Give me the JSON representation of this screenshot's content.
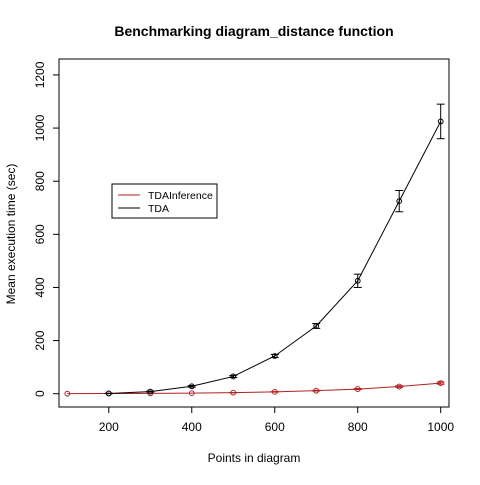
{
  "chart_data": {
    "type": "line",
    "title": "Benchmarking diagram_distance function",
    "xlabel": "Points in diagram",
    "ylabel": "Mean execution time (sec)",
    "xlim": [
      80,
      1020
    ],
    "ylim": [
      -50,
      1260
    ],
    "x_ticks": [
      200,
      400,
      600,
      800,
      1000
    ],
    "y_ticks": [
      0,
      200,
      400,
      600,
      800,
      1000,
      1200
    ],
    "grid": false,
    "legend_position": "left, middle",
    "series": [
      {
        "name": "TDAInference",
        "color": "#b22222",
        "x": [
          100,
          200,
          300,
          400,
          500,
          600,
          700,
          800,
          900,
          1000
        ],
        "y": [
          0.3,
          0.6,
          1.2,
          2.2,
          4.0,
          7.0,
          11.5,
          17.5,
          27.0,
          40.0
        ],
        "err": [
          0,
          0,
          0,
          0,
          0.5,
          1,
          1.5,
          2,
          3,
          4
        ]
      },
      {
        "name": "TDA",
        "color": "#000000",
        "x": [
          200,
          300,
          400,
          500,
          600,
          700,
          800,
          900,
          1000
        ],
        "y": [
          1,
          8,
          28,
          65,
          142,
          255,
          425,
          725,
          1025
        ],
        "err": [
          1,
          2,
          3,
          4,
          6,
          9,
          25,
          40,
          65
        ]
      }
    ]
  }
}
